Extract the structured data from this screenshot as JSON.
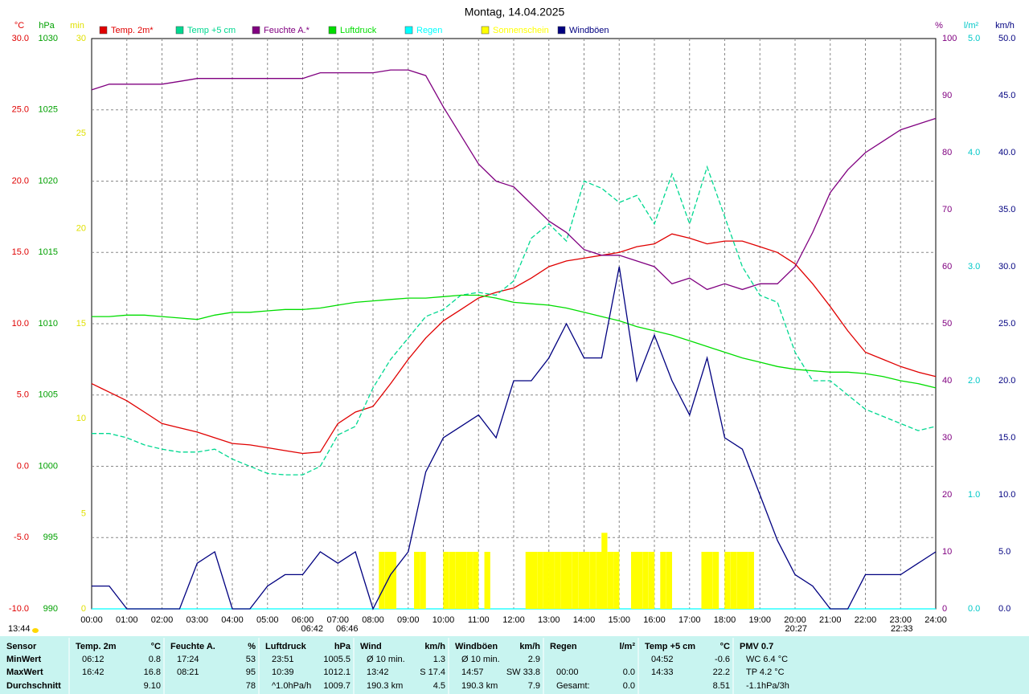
{
  "chart_data": {
    "type": "line",
    "title": "Montag, 14.04.2025",
    "xlim": [
      0,
      24
    ],
    "xticks": [
      {
        "value": 0,
        "label": "00:00"
      },
      {
        "value": 1,
        "label": "01:00"
      },
      {
        "value": 2,
        "label": "02:00"
      },
      {
        "value": 3,
        "label": "03:00"
      },
      {
        "value": 4,
        "label": "04:00"
      },
      {
        "value": 5,
        "label": "05:00"
      },
      {
        "value": 6,
        "label": "06:00"
      },
      {
        "value": 7,
        "label": "07:00"
      },
      {
        "value": 8,
        "label": "08:00"
      },
      {
        "value": 9,
        "label": "09:00"
      },
      {
        "value": 10,
        "label": "10:00"
      },
      {
        "value": 11,
        "label": "11:00"
      },
      {
        "value": 12,
        "label": "12:00"
      },
      {
        "value": 13,
        "label": "13:00"
      },
      {
        "value": 14,
        "label": "14:00"
      },
      {
        "value": 15,
        "label": "15:00"
      },
      {
        "value": 16,
        "label": "16:00"
      },
      {
        "value": 17,
        "label": "17:00"
      },
      {
        "value": 18,
        "label": "18:00"
      },
      {
        "value": 19,
        "label": "19:00"
      },
      {
        "value": 20,
        "label": "20:00"
      },
      {
        "value": 21,
        "label": "21:00"
      },
      {
        "value": 22,
        "label": "22:00"
      },
      {
        "value": 23,
        "label": "23:00"
      },
      {
        "value": 24,
        "label": "24:00"
      }
    ],
    "grid": true,
    "axes": {
      "temp": {
        "label": "°C",
        "side": "left",
        "color": "#e00000",
        "lim": [
          -10,
          30
        ],
        "ticks": [
          {
            "value": -10,
            "label": "-10.0"
          },
          {
            "value": -5,
            "label": "-5.0"
          },
          {
            "value": 0,
            "label": "0.0"
          },
          {
            "value": 5,
            "label": "5.0"
          },
          {
            "value": 10,
            "label": "10.0"
          },
          {
            "value": 15,
            "label": "15.0"
          },
          {
            "value": 20,
            "label": "20.0"
          },
          {
            "value": 25,
            "label": "25.0"
          },
          {
            "value": 30,
            "label": "30.0"
          }
        ]
      },
      "hpa": {
        "label": "hPa",
        "side": "left",
        "color": "#00a000",
        "lim": [
          990,
          1030
        ],
        "ticks": [
          990,
          995,
          1000,
          1005,
          1010,
          1015,
          1020,
          1025,
          1030
        ]
      },
      "min": {
        "label": "min",
        "side": "left",
        "color": "#e0e000",
        "lim": [
          0,
          30
        ],
        "ticks": [
          0,
          5,
          10,
          15,
          20,
          25,
          30
        ]
      },
      "pct": {
        "label": "%",
        "side": "right",
        "color": "#800080",
        "lim": [
          0,
          100
        ],
        "ticks": [
          0,
          10,
          20,
          30,
          40,
          50,
          60,
          70,
          80,
          90,
          100
        ]
      },
      "lm2": {
        "label": "l/m²",
        "side": "right",
        "color": "#00c8c8",
        "lim": [
          0,
          5
        ],
        "ticks": [
          {
            "value": 0,
            "label": "0.0"
          },
          {
            "value": 1,
            "label": "1.0"
          },
          {
            "value": 2,
            "label": "2.0"
          },
          {
            "value": 3,
            "label": "3.0"
          },
          {
            "value": 4,
            "label": "4.0"
          },
          {
            "value": 5,
            "label": "5.0"
          }
        ]
      },
      "kmh": {
        "label": "km/h",
        "side": "right",
        "color": "#000080",
        "lim": [
          0,
          50
        ],
        "ticks": [
          {
            "value": 0,
            "label": "0.0"
          },
          {
            "value": 5,
            "label": "5.0"
          },
          {
            "value": 10,
            "label": "10.0"
          },
          {
            "value": 15,
            "label": "15.0"
          },
          {
            "value": 20,
            "label": "20.0"
          },
          {
            "value": 25,
            "label": "25.0"
          },
          {
            "value": 30,
            "label": "30.0"
          },
          {
            "value": 35,
            "label": "35.0"
          },
          {
            "value": 40,
            "label": "40.0"
          },
          {
            "value": 45,
            "label": "45.0"
          },
          {
            "value": 50,
            "label": "50.0"
          }
        ]
      }
    },
    "x": [
      0,
      0.5,
      1,
      1.5,
      2,
      2.5,
      3,
      3.5,
      4,
      4.5,
      5,
      5.5,
      6,
      6.5,
      7,
      7.5,
      8,
      8.5,
      9,
      9.5,
      10,
      10.5,
      11,
      11.5,
      12,
      12.5,
      13,
      13.5,
      14,
      14.5,
      15,
      15.5,
      16,
      16.5,
      17,
      17.5,
      18,
      18.5,
      19,
      19.5,
      20,
      20.5,
      21,
      21.5,
      22,
      22.5,
      23,
      23.5,
      24
    ],
    "series": [
      {
        "name": "Temp. 2m*",
        "color": "#e00000",
        "axis": "temp",
        "values": [
          5.8,
          5.2,
          4.6,
          3.8,
          3.0,
          2.7,
          2.4,
          2.0,
          1.6,
          1.5,
          1.3,
          1.1,
          0.9,
          1.0,
          3.0,
          3.8,
          4.2,
          5.8,
          7.5,
          9.0,
          10.2,
          11.0,
          11.8,
          12.2,
          12.5,
          13.2,
          14.0,
          14.4,
          14.6,
          14.8,
          15.0,
          15.4,
          15.6,
          16.3,
          16.0,
          15.6,
          15.8,
          15.8,
          15.4,
          15.0,
          14.2,
          12.8,
          11.2,
          9.5,
          8.0,
          7.5,
          7.0,
          6.6,
          6.3
        ]
      },
      {
        "name": "Temp +5 cm",
        "color": "#00d890",
        "axis": "temp",
        "dashed": true,
        "values": [
          2.3,
          2.3,
          2.0,
          1.5,
          1.2,
          1.0,
          1.0,
          1.2,
          0.5,
          0.0,
          -0.5,
          -0.6,
          -0.6,
          0.0,
          2.2,
          2.8,
          5.5,
          7.5,
          9.0,
          10.5,
          11.0,
          12.0,
          12.2,
          12.0,
          13.0,
          16.0,
          17.0,
          15.8,
          20.0,
          19.5,
          18.5,
          19.0,
          17.0,
          20.5,
          17.0,
          21.0,
          17.5,
          14.0,
          12.0,
          11.5,
          8.0,
          6.0,
          6.0,
          5.0,
          4.0,
          3.5,
          3.0,
          2.5,
          2.8
        ]
      },
      {
        "name": "Feuchte A.*",
        "color": "#800080",
        "axis": "pct",
        "values": [
          91,
          92,
          92,
          92,
          92,
          92.5,
          93,
          93,
          93,
          93,
          93,
          93,
          93,
          94,
          94,
          94,
          94,
          94.5,
          94.5,
          93.5,
          88,
          83,
          78,
          75,
          74,
          71,
          68,
          66,
          63,
          62,
          62,
          61,
          60,
          57,
          58,
          56,
          57,
          56,
          57,
          57,
          60,
          66,
          73,
          77,
          80,
          82,
          84,
          85,
          86
        ]
      },
      {
        "name": "Luftdruck",
        "color": "#00dd00",
        "axis": "hpa",
        "values": [
          1010.5,
          1010.5,
          1010.6,
          1010.6,
          1010.5,
          1010.4,
          1010.3,
          1010.6,
          1010.8,
          1010.8,
          1010.9,
          1011.0,
          1011.0,
          1011.1,
          1011.3,
          1011.5,
          1011.6,
          1011.7,
          1011.8,
          1011.8,
          1011.9,
          1012.0,
          1012.0,
          1011.8,
          1011.5,
          1011.4,
          1011.3,
          1011.1,
          1010.8,
          1010.5,
          1010.2,
          1009.8,
          1009.5,
          1009.2,
          1008.8,
          1008.4,
          1008.0,
          1007.6,
          1007.3,
          1007.0,
          1006.8,
          1006.7,
          1006.6,
          1006.6,
          1006.5,
          1006.3,
          1006.0,
          1005.8,
          1005.5
        ]
      },
      {
        "name": "Regen",
        "color": "#00ffff",
        "axis": "lm2",
        "values": [
          0,
          0,
          0,
          0,
          0,
          0,
          0,
          0,
          0,
          0,
          0,
          0,
          0,
          0,
          0,
          0,
          0,
          0,
          0,
          0,
          0,
          0,
          0,
          0,
          0,
          0,
          0,
          0,
          0,
          0,
          0,
          0,
          0,
          0,
          0,
          0,
          0,
          0,
          0,
          0,
          0,
          0,
          0,
          0,
          0,
          0,
          0,
          0,
          0
        ]
      },
      {
        "name": "Sonnenschein",
        "color": "#ffff00",
        "axis": "min",
        "type": "bar",
        "x": [
          8.25,
          8.42,
          8.58,
          9.25,
          9.42,
          10.08,
          10.25,
          10.42,
          10.58,
          10.75,
          10.92,
          11.25,
          12.42,
          12.58,
          12.75,
          12.92,
          13.08,
          13.25,
          13.42,
          13.58,
          13.75,
          13.92,
          14.08,
          14.25,
          14.42,
          14.58,
          14.75,
          14.92,
          15.42,
          15.58,
          15.75,
          15.92,
          16.25,
          16.42,
          17.42,
          17.58,
          17.75,
          18.08,
          18.25,
          18.42,
          18.58,
          18.75
        ],
        "values": [
          3,
          3,
          3,
          3,
          3,
          3,
          3,
          3,
          3,
          3,
          3,
          3,
          3,
          3,
          3,
          3,
          3,
          3,
          3,
          3,
          3,
          3,
          3,
          3,
          3,
          4,
          3,
          3,
          3,
          3,
          3,
          3,
          3,
          3,
          3,
          3,
          3,
          3,
          3,
          3,
          3,
          3
        ]
      },
      {
        "name": "Windböen",
        "color": "#000080",
        "axis": "kmh",
        "values": [
          2,
          2,
          0,
          0,
          0,
          0,
          4,
          5,
          0,
          0,
          2,
          3,
          3,
          5,
          4,
          5,
          0,
          3,
          5,
          12,
          15,
          16,
          17,
          15,
          20,
          20,
          22,
          25,
          22,
          22,
          30,
          20,
          24,
          20,
          17,
          22,
          15,
          14,
          10,
          6,
          3,
          2,
          0,
          0,
          3,
          3,
          3,
          4,
          5
        ]
      }
    ],
    "annotations": [
      "13:44",
      "06:42",
      "06:46",
      "20:27",
      "22:33"
    ]
  },
  "stats": {
    "columns": [
      {
        "name": "Temp. 2m",
        "unit": "°C"
      },
      {
        "name": "Feuchte A.",
        "unit": "%"
      },
      {
        "name": "Luftdruck",
        "unit": "hPa"
      },
      {
        "name": "Wind",
        "unit": "km/h"
      },
      {
        "name": "Windböen",
        "unit": "km/h"
      },
      {
        "name": "Regen",
        "unit": "l/m²"
      },
      {
        "name": "Temp +5 cm",
        "unit": "°C"
      },
      {
        "name": "PMV 0.7"
      }
    ],
    "corner": "Sensor",
    "rows": [
      {
        "label": "MinWert",
        "cells": [
          {
            "l": "06:12",
            "r": "0.8"
          },
          {
            "l": "17:24",
            "r": "53"
          },
          {
            "l": "23:51",
            "r": "1005.5"
          },
          {
            "l": "Ø 10 min.",
            "r": "1.3"
          },
          {
            "l": "Ø 10 min.",
            "r": "2.9"
          },
          {},
          {
            "l": "04:52",
            "r": "-0.6"
          },
          {
            "l": "WC 6.4 °C"
          }
        ]
      },
      {
        "label": "MaxWert",
        "cells": [
          {
            "l": "16:42",
            "r": "16.8"
          },
          {
            "l": "08:21",
            "r": "95"
          },
          {
            "l": "10:39",
            "r": "1012.1"
          },
          {
            "l": "13:42",
            "r": "S 17.4"
          },
          {
            "l": "14:57",
            "r": "SW 33.8"
          },
          {
            "l": "00:00",
            "r": "0.0"
          },
          {
            "l": "14:33",
            "r": "22.2"
          },
          {
            "l": "TP 4.2 °C"
          }
        ]
      },
      {
        "label": "Durchschnitt",
        "cells": [
          {
            "r": "9.10"
          },
          {
            "r": "78"
          },
          {
            "l": "^1.0hPa/h",
            "r": "1009.7"
          },
          {
            "l": "190.3 km",
            "r": "4.5"
          },
          {
            "l": "190.3 km",
            "r": "7.9"
          },
          {
            "l": "Gesamt:",
            "r": "0.0"
          },
          {
            "r": "8.51"
          },
          {
            "l": "-1.1hPa/3h"
          }
        ]
      }
    ]
  }
}
